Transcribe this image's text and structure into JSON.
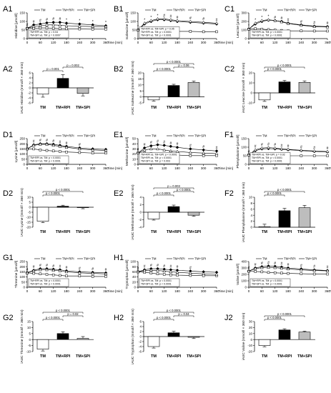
{
  "colors": {
    "tm": "#ffffff",
    "rpi": "#000000",
    "spi": "#bdbdbd",
    "axis": "#000000"
  },
  "legend_labels": [
    "TM",
    "TM+RPI",
    "TM+SPI"
  ],
  "time_label": "Time [min]",
  "chart_data": [
    {
      "id": "A1",
      "type": "line",
      "ylabel": "Histidine [µmol/l]",
      "x": [
        0,
        30,
        60,
        90,
        120,
        150,
        180,
        240,
        300,
        360
      ],
      "ylim": [
        0,
        150
      ],
      "yticks": [
        0,
        50,
        100,
        150
      ],
      "series": [
        {
          "name": "TM",
          "values": [
            60,
            60,
            62,
            62,
            60,
            58,
            57,
            56,
            55,
            55
          ]
        },
        {
          "name": "TM+RPI",
          "values": [
            60,
            80,
            85,
            92,
            95,
            95,
            90,
            85,
            80,
            75
          ]
        },
        {
          "name": "TM+SPI",
          "values": [
            60,
            70,
            75,
            80,
            80,
            78,
            75,
            72,
            70,
            70
          ]
        }
      ],
      "stats": [
        "TM+RPI vs. TM: p = 0.04",
        "TM+SPI vs. TM: p = 0.0007"
      ],
      "markers": [
        "#",
        "#",
        "#",
        "#",
        "#",
        "#",
        "*",
        "*",
        "*",
        "*"
      ]
    },
    {
      "id": "A2",
      "type": "bar",
      "ylabel": "iAUC Histidine (mmol/l × 360 min)",
      "categories": [
        "TM",
        "TM+RPI",
        "TM+SPI"
      ],
      "values": [
        -2.5,
        3.8,
        -2.2
      ],
      "errors": [
        1.2,
        1.5,
        1.0
      ],
      "ylim": [
        -6,
        6
      ],
      "yticks": [
        -6,
        -4,
        -2,
        0,
        2,
        4,
        6
      ],
      "brackets": [
        {
          "from": 0,
          "to": 1,
          "label": "p = 0.001"
        },
        {
          "from": 1,
          "to": 2,
          "label": "p = 0.002"
        }
      ]
    },
    {
      "id": "B1",
      "type": "line",
      "ylabel": "Isoleucine [µmol/l]",
      "x": [
        0,
        30,
        60,
        90,
        120,
        150,
        180,
        240,
        300,
        360
      ],
      "ylim": [
        0,
        150
      ],
      "yticks": [
        0,
        50,
        100,
        150
      ],
      "series": [
        {
          "name": "TM",
          "values": [
            50,
            52,
            50,
            48,
            45,
            43,
            42,
            42,
            40,
            40
          ]
        },
        {
          "name": "TM+RPI",
          "values": [
            50,
            85,
            100,
            110,
            110,
            105,
            100,
            95,
            90,
            85
          ]
        },
        {
          "name": "TM+SPI",
          "values": [
            50,
            90,
            105,
            115,
            115,
            110,
            105,
            100,
            95,
            90
          ]
        }
      ],
      "stats": [
        "TM+RPI vs. TM+SPI: p = 0.05",
        "TM+RPI vs. TM: p < 0.0001",
        "TM+SPI vs. TM: p < 0.0001"
      ],
      "markers": [
        "*",
        "*",
        "*",
        "*",
        "#",
        "#",
        "#",
        "#",
        "#",
        "#"
      ]
    },
    {
      "id": "B2",
      "type": "bar",
      "ylabel": "iAUC Isoleucine (mmol/l × 360 min)",
      "categories": [
        "TM",
        "TM+RPI",
        "TM+SPI"
      ],
      "values": [
        -2.5,
        9.5,
        12
      ],
      "errors": [
        1,
        1,
        1.2
      ],
      "ylim": [
        -5,
        20
      ],
      "yticks": [
        -5,
        0,
        5,
        10,
        15,
        20
      ],
      "brackets": [
        {
          "from": 0,
          "to": 1,
          "label": "p < 0.0001"
        },
        {
          "from": 1,
          "to": 2,
          "label": "p = 0.06"
        },
        {
          "from": 0,
          "to": 2,
          "label": "p < 0.0001"
        }
      ]
    },
    {
      "id": "C1",
      "type": "line",
      "ylabel": "Leucine [µmol/l]",
      "x": [
        0,
        30,
        60,
        90,
        120,
        150,
        180,
        240,
        300,
        360
      ],
      "ylim": [
        0,
        300
      ],
      "yticks": [
        0,
        100,
        200,
        300
      ],
      "series": [
        {
          "name": "TM",
          "values": [
            110,
            115,
            110,
            105,
            100,
            95,
            90,
            90,
            88,
            88
          ]
        },
        {
          "name": "TM+RPI",
          "values": [
            110,
            170,
            200,
            215,
            210,
            200,
            180,
            160,
            145,
            140
          ]
        },
        {
          "name": "TM+SPI",
          "values": [
            110,
            180,
            210,
            220,
            210,
            195,
            175,
            155,
            140,
            135
          ]
        }
      ],
      "stats": [
        "TM+RPI vs. TM: p < 0.0001",
        "TM+SPI vs. TM: p < 0.0001"
      ],
      "markers": [
        "*",
        "*",
        "*",
        "*",
        "#",
        "#",
        "#",
        "#",
        "#",
        "#"
      ]
    },
    {
      "id": "C2",
      "type": "bar",
      "ylabel": "iAUC Leucine (mmol/l × 360 min)",
      "categories": [
        "TM",
        "TM+RPI",
        "TM+SPI"
      ],
      "values": [
        -7,
        11,
        10.5
      ],
      "errors": [
        1.5,
        1.5,
        1.5
      ],
      "ylim": [
        -10,
        20
      ],
      "yticks": [
        -10,
        0,
        10,
        20
      ],
      "brackets": [
        {
          "from": 0,
          "to": 1,
          "label": "p < 0.0001"
        },
        {
          "from": 0,
          "to": 2,
          "label": "p < 0.0001"
        }
      ]
    },
    {
      "id": "D1",
      "type": "line",
      "ylabel": "Lysine [µmol/l]",
      "x": [
        0,
        30,
        60,
        90,
        120,
        150,
        180,
        240,
        300,
        360
      ],
      "ylim": [
        0,
        250
      ],
      "yticks": [
        0,
        50,
        100,
        150,
        200,
        250
      ],
      "series": [
        {
          "name": "TM",
          "values": [
            150,
            150,
            140,
            135,
            130,
            125,
            120,
            115,
            110,
            110
          ]
        },
        {
          "name": "TM+RPI",
          "values": [
            150,
            190,
            200,
            200,
            195,
            185,
            175,
            160,
            150,
            145
          ]
        },
        {
          "name": "TM+SPI",
          "values": [
            150,
            185,
            195,
            195,
            185,
            175,
            165,
            150,
            140,
            135
          ]
        }
      ],
      "stats": [
        "TM+RPI vs. TM: p < 0.0001",
        "TM+SPI vs. TM: p < 0.0001"
      ],
      "markers": [
        "#",
        "#",
        "#",
        "#",
        "#",
        "#",
        "#",
        "#",
        "",
        ""
      ]
    },
    {
      "id": "D2",
      "type": "bar",
      "ylabel": "iAUC Lysine (mmol/l × 360 min)",
      "categories": [
        "TM",
        "TM+RPI",
        "TM+SPI"
      ],
      "values": [
        -14,
        1,
        -0.5
      ],
      "errors": [
        1.5,
        1,
        1
      ],
      "ylim": [
        -20,
        10
      ],
      "yticks": [
        -20,
        -15,
        -10,
        -5,
        0,
        5,
        10
      ],
      "brackets": [
        {
          "from": 0,
          "to": 1,
          "label": "p < 0.0001"
        },
        {
          "from": 0,
          "to": 2,
          "label": "p < 0.0001"
        }
      ]
    },
    {
      "id": "E1",
      "type": "line",
      "ylabel": "Methionine [µmol/l]",
      "x": [
        0,
        30,
        60,
        90,
        120,
        150,
        180,
        240,
        300,
        360
      ],
      "ylim": [
        0,
        50
      ],
      "yticks": [
        0,
        10,
        20,
        30,
        40,
        50
      ],
      "series": [
        {
          "name": "TM",
          "values": [
            22,
            22,
            21,
            20,
            19,
            18,
            18,
            17,
            17,
            17
          ]
        },
        {
          "name": "TM+RPI",
          "values": [
            22,
            32,
            36,
            38,
            37,
            35,
            33,
            30,
            28,
            26
          ]
        },
        {
          "name": "TM+SPI",
          "values": [
            22,
            28,
            30,
            30,
            28,
            26,
            25,
            23,
            22,
            21
          ]
        }
      ],
      "stats": [
        "TM+RPI vs. TM+SPI: p < 0.0001",
        "TM+RPI vs. TM: p < 0.0001",
        "TM+SPI vs. TM: p = 0.003"
      ],
      "markers": [
        "#",
        "#",
        "#",
        "#",
        "#",
        "#",
        "#",
        "#",
        "#",
        "#"
      ]
    },
    {
      "id": "E2",
      "type": "bar",
      "ylabel": "iAUC Methionine (mmol/l × 360 min)",
      "categories": [
        "TM",
        "TM+RPI",
        "TM+SPI"
      ],
      "values": [
        -1.8,
        1.5,
        -0.8
      ],
      "errors": [
        0.3,
        0.4,
        0.3
      ],
      "ylim": [
        -4,
        4
      ],
      "yticks": [
        -4,
        -2,
        0,
        2,
        4
      ],
      "brackets": [
        {
          "from": 0,
          "to": 1,
          "label": "p < 0.0001"
        },
        {
          "from": 1,
          "to": 2,
          "label": "p < 0.0001"
        },
        {
          "from": 0,
          "to": 2,
          "label": "p = 0.003"
        }
      ]
    },
    {
      "id": "F1",
      "type": "line",
      "ylabel": "Phenylalanine [µmol/l]",
      "x": [
        0,
        30,
        60,
        90,
        120,
        150,
        180,
        240,
        300,
        360
      ],
      "ylim": [
        0,
        150
      ],
      "yticks": [
        0,
        50,
        100,
        150
      ],
      "series": [
        {
          "name": "TM",
          "values": [
            55,
            55,
            53,
            52,
            50,
            50,
            50,
            50,
            50,
            50
          ]
        },
        {
          "name": "TM+RPI",
          "values": [
            55,
            80,
            90,
            92,
            90,
            88,
            85,
            80,
            75,
            72
          ]
        },
        {
          "name": "TM+SPI",
          "values": [
            55,
            85,
            95,
            98,
            95,
            90,
            88,
            82,
            78,
            75
          ]
        }
      ],
      "stats": [
        "TM+RPI vs. TM+SPI: p = 0.02",
        "TM+RPI vs. TM: p < 0.0001",
        "TM+SPI vs. TM: p < 0.0001"
      ],
      "markers": [
        "#",
        "#",
        "#",
        "#",
        "#",
        "#",
        "#",
        "#",
        "#",
        "#"
      ]
    },
    {
      "id": "F2",
      "type": "bar",
      "ylabel": "iAUC Phenylalanine (mmol/l × 360 min)",
      "categories": [
        "TM",
        "TM+RPI",
        "TM+SPI"
      ],
      "values": [
        0.2,
        5.5,
        6.5
      ],
      "errors": [
        0.8,
        0.8,
        0.8
      ],
      "ylim": [
        0,
        10
      ],
      "yticks": [
        0,
        2,
        4,
        6,
        8,
        10
      ],
      "brackets": [
        {
          "from": 0,
          "to": 1,
          "label": "p < 0.0001"
        },
        {
          "from": 0,
          "to": 2,
          "label": "p < 0.0001"
        }
      ]
    },
    {
      "id": "G1",
      "type": "line",
      "ylabel": "Threonine [µmol/l]",
      "x": [
        0,
        30,
        60,
        90,
        120,
        150,
        180,
        240,
        300,
        360
      ],
      "ylim": [
        0,
        250
      ],
      "yticks": [
        0,
        50,
        100,
        150,
        200,
        250
      ],
      "series": [
        {
          "name": "TM",
          "values": [
            140,
            135,
            130,
            125,
            120,
            115,
            110,
            110,
            105,
            105
          ]
        },
        {
          "name": "TM+RPI",
          "values": [
            140,
            165,
            180,
            180,
            175,
            170,
            160,
            150,
            145,
            140
          ]
        },
        {
          "name": "TM+SPI",
          "values": [
            140,
            160,
            170,
            170,
            165,
            160,
            150,
            140,
            135,
            130
          ]
        }
      ],
      "stats": [
        "TM+RPI vs. TM: p < 0.0001",
        "TM+SPI vs. TM: p < 0.0001"
      ],
      "markers": [
        "#",
        "#",
        "#",
        "#",
        "#",
        "#",
        "#",
        "#",
        "#",
        "#"
      ]
    },
    {
      "id": "G2",
      "type": "bar",
      "ylabel": "iAUC Threonine (mmol/l × 360 min)",
      "categories": [
        "TM",
        "TM+RPI",
        "TM+SPI"
      ],
      "values": [
        -8,
        5,
        1
      ],
      "errors": [
        1.5,
        1.5,
        1.5
      ],
      "ylim": [
        -10,
        15
      ],
      "yticks": [
        -10,
        -5,
        0,
        5,
        10,
        15
      ],
      "brackets": [
        {
          "from": 0,
          "to": 1,
          "label": "p < 0.0001"
        },
        {
          "from": 1,
          "to": 2,
          "label": "p = 0.02"
        },
        {
          "from": 0,
          "to": 2,
          "label": "p < 0.0001"
        }
      ]
    },
    {
      "id": "H1",
      "type": "line",
      "ylabel": "Tryptophan [µmol/l]",
      "x": [
        0,
        30,
        60,
        90,
        120,
        150,
        180,
        240,
        300,
        360
      ],
      "ylim": [
        0,
        100
      ],
      "yticks": [
        0,
        20,
        40,
        60,
        80,
        100
      ],
      "series": [
        {
          "name": "TM",
          "values": [
            60,
            58,
            55,
            52,
            50,
            48,
            47,
            46,
            45,
            45
          ]
        },
        {
          "name": "TM+RPI",
          "values": [
            60,
            68,
            72,
            72,
            70,
            68,
            66,
            63,
            60,
            58
          ]
        },
        {
          "name": "TM+SPI",
          "values": [
            60,
            65,
            66,
            65,
            63,
            60,
            58,
            55,
            52,
            50
          ]
        }
      ],
      "stats": [
        "TM+RPI vs. TM: p < 0.0001",
        "TM+SPI vs. TM: p < 0.0001"
      ],
      "markers": [
        "#",
        "#",
        "#",
        "#",
        "#",
        "#",
        "#",
        "#",
        "",
        ""
      ]
    },
    {
      "id": "H2",
      "type": "bar",
      "ylabel": "iAUC Tryptophan (mmol/l × 360 min)",
      "categories": [
        "TM",
        "TM+RPI",
        "TM+SPI"
      ],
      "values": [
        -4,
        1.5,
        -0.3
      ],
      "errors": [
        0.6,
        0.6,
        0.5
      ],
      "ylim": [
        -6,
        6
      ],
      "yticks": [
        -6,
        -4,
        -2,
        0,
        2,
        4,
        6
      ],
      "brackets": [
        {
          "from": 0,
          "to": 1,
          "label": "p < 0.0001"
        },
        {
          "from": 1,
          "to": 2,
          "label": "p = 0.04"
        },
        {
          "from": 0,
          "to": 2,
          "label": "p < 0.0001"
        }
      ]
    },
    {
      "id": "J1",
      "type": "line",
      "ylabel": "Valine [µmol/l]",
      "x": [
        0,
        30,
        60,
        90,
        120,
        150,
        180,
        240,
        300,
        360
      ],
      "ylim": [
        0,
        400
      ],
      "yticks": [
        0,
        100,
        200,
        300,
        400
      ],
      "series": [
        {
          "name": "TM",
          "values": [
            250,
            245,
            240,
            230,
            225,
            220,
            215,
            210,
            205,
            205
          ]
        },
        {
          "name": "TM+RPI",
          "values": [
            250,
            300,
            320,
            330,
            325,
            315,
            300,
            285,
            270,
            260
          ]
        },
        {
          "name": "TM+SPI",
          "values": [
            250,
            290,
            305,
            310,
            305,
            295,
            285,
            270,
            260,
            255
          ]
        }
      ],
      "stats": [
        "TM+RPI vs. TM: p < 0.0001",
        "TM+SPI vs. TM: p < 0.0001"
      ],
      "markers": [
        "#",
        "#",
        "#",
        "#",
        "#",
        "#",
        "#",
        "#",
        "#",
        "#"
      ]
    },
    {
      "id": "J2",
      "type": "bar",
      "ylabel": "iAUC Valine (mmol/l × 360 min)",
      "categories": [
        "TM",
        "TM+RPI",
        "TM+SPI"
      ],
      "values": [
        -10,
        16,
        12.5
      ],
      "errors": [
        2,
        2,
        1.5
      ],
      "ylim": [
        -20,
        30
      ],
      "yticks": [
        -20,
        -10,
        0,
        10,
        20,
        30
      ],
      "brackets": [
        {
          "from": 0,
          "to": 1,
          "label": "p < 0.0001"
        },
        {
          "from": 0,
          "to": 2,
          "label": "p < 0.0001"
        }
      ]
    }
  ]
}
